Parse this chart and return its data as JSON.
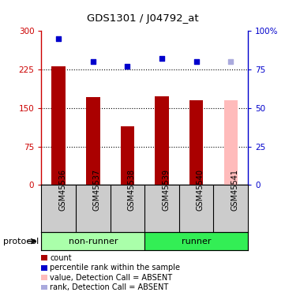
{
  "title": "GDS1301 / J04792_at",
  "samples": [
    "GSM45536",
    "GSM45537",
    "GSM45538",
    "GSM45539",
    "GSM45540",
    "GSM45541"
  ],
  "counts": [
    232,
    172,
    115,
    173,
    165,
    165
  ],
  "ranks_pct": [
    95,
    80,
    77,
    82,
    80,
    80
  ],
  "absent_flags": [
    false,
    false,
    false,
    false,
    false,
    true
  ],
  "bar_color_present": "#aa0000",
  "bar_color_absent": "#ffbbbb",
  "rank_color_present": "#0000cc",
  "rank_color_absent": "#aaaadd",
  "ylim_left": [
    0,
    300
  ],
  "ylim_right": [
    0,
    100
  ],
  "yticks_left": [
    0,
    75,
    150,
    225,
    300
  ],
  "yticks_right": [
    0,
    25,
    50,
    75,
    100
  ],
  "ytick_labels_left": [
    "0",
    "75",
    "150",
    "225",
    "300"
  ],
  "ytick_labels_right": [
    "0",
    "25",
    "50",
    "75",
    "100%"
  ],
  "groups": [
    {
      "label": "non-runner",
      "start": 0,
      "end": 3,
      "color": "#aaffaa"
    },
    {
      "label": "runner",
      "start": 3,
      "end": 6,
      "color": "#33ee55"
    }
  ],
  "legend_items": [
    {
      "label": "count",
      "color": "#aa0000"
    },
    {
      "label": "percentile rank within the sample",
      "color": "#0000cc"
    },
    {
      "label": "value, Detection Call = ABSENT",
      "color": "#ffbbbb"
    },
    {
      "label": "rank, Detection Call = ABSENT",
      "color": "#aaaadd"
    }
  ],
  "protocol_label": "protocol",
  "background_color": "#ffffff",
  "grid_color": "#000000",
  "label_bg": "#cccccc",
  "bar_width": 0.4
}
